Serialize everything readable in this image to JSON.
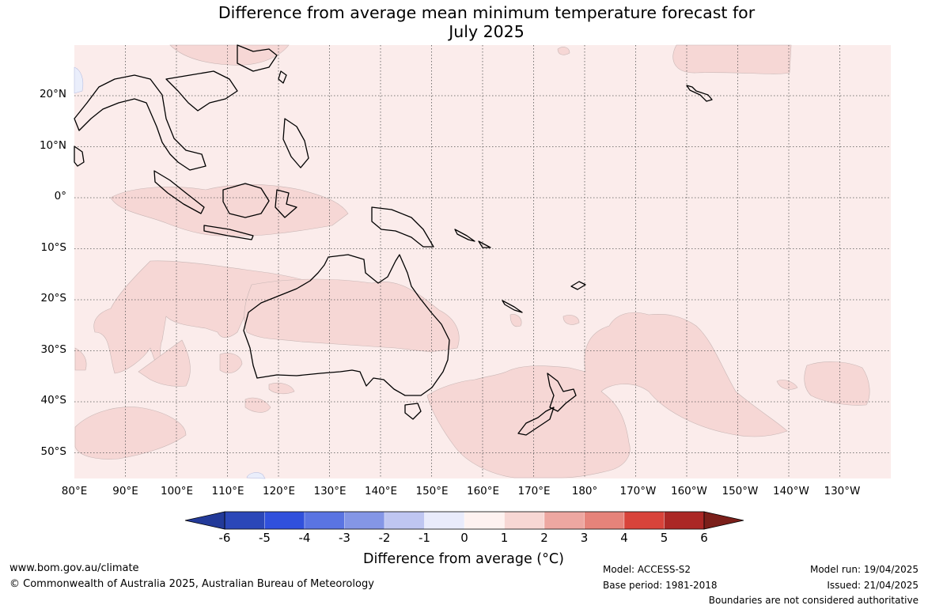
{
  "title": {
    "line1": "Difference from average mean minimum temperature forecast for",
    "line2": "July 2025"
  },
  "map": {
    "lon_labels": [
      "80°E",
      "90°E",
      "100°E",
      "110°E",
      "120°E",
      "130°E",
      "140°E",
      "150°E",
      "160°E",
      "170°E",
      "180°",
      "170°W",
      "160°W",
      "150°W",
      "140°W",
      "130°W"
    ],
    "lat_labels": [
      "20°N",
      "10°N",
      "0°",
      "10°S",
      "20°S",
      "30°S",
      "40°S",
      "50°S"
    ],
    "colors": {
      "ocean_base": "#fbeceb",
      "anomaly_1_2": "#f6d7d5",
      "anomaly_neg": "#eaeefb",
      "coast": "#000000",
      "border": "#888888"
    }
  },
  "colorbar": {
    "tick_labels": [
      "-6",
      "-5",
      "-4",
      "-3",
      "-2",
      "-1",
      "0",
      "1",
      "2",
      "3",
      "4",
      "5",
      "6"
    ],
    "colors": [
      "#233a99",
      "#2b47b8",
      "#3050dc",
      "#5a74e2",
      "#8496e6",
      "#bfc6f1",
      "#e9ebfb",
      "#fef2f0",
      "#f7d7d4",
      "#eda7a1",
      "#e6837a",
      "#d8433a",
      "#ab2725",
      "#7b1f1a"
    ],
    "title": "Difference from average (",
    "unit": "°C",
    "close": ")"
  },
  "footer": {
    "website": "www.bom.gov.au/climate",
    "copyright": "© Commonwealth of Australia 2025, Australian Bureau of Meteorology",
    "model": "Model: ACCESS-S2",
    "base_period": "Base period: 1981-2018",
    "model_run": "Model run: 19/04/2025",
    "issued": "Issued: 21/04/2025",
    "disclaimer": "Boundaries are not considered authoritative"
  }
}
